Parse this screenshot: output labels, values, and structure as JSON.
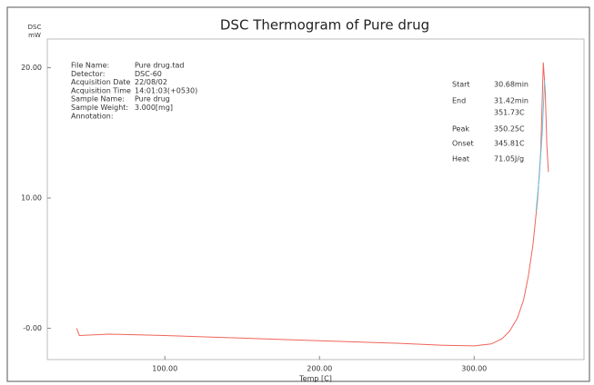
{
  "chart_data": {
    "type": "line",
    "title": "DSC Thermogram of Pure drug",
    "ylabel": "DSC",
    "yunit": "mW",
    "xlabel": "Temp [C]",
    "xlim": [
      24,
      371
    ],
    "ylim": [
      -2.4,
      22.2
    ],
    "xticks": [
      {
        "value": 100,
        "label": "100.00"
      },
      {
        "value": 200,
        "label": "200.00"
      },
      {
        "value": 300,
        "label": "300.00"
      }
    ],
    "yticks": [
      {
        "value": 0,
        "label": "-0.00"
      },
      {
        "value": 10,
        "label": "10.00"
      },
      {
        "value": 20,
        "label": "20.00"
      }
    ],
    "series": [
      {
        "color": "#f0645a",
        "x": [
          43,
          44.7,
          64,
          100,
          150,
          200,
          250,
          280,
          300,
          311,
          318,
          323,
          328,
          332,
          335,
          338,
          341,
          343,
          344.7,
          346,
          347,
          348
        ],
        "values": [
          0,
          -0.55,
          -0.45,
          -0.55,
          -0.75,
          -0.95,
          -1.15,
          -1.3,
          -1.35,
          -1.2,
          -0.8,
          -0.2,
          0.8,
          2.2,
          4,
          6.4,
          9.9,
          13.5,
          20.4,
          18,
          14,
          12
        ]
      },
      {
        "color": "#5cc8e6",
        "x": [
          340,
          342,
          344,
          345.5
        ],
        "values": [
          9,
          11.5,
          15,
          19
        ]
      }
    ],
    "info_left": [
      {
        "label": "File Name:",
        "value": "Pure drug.tad"
      },
      {
        "label": "Detector:",
        "value": "DSC-60"
      },
      {
        "label": "Acquisition Date",
        "value": "22/08/02"
      },
      {
        "label": "Acquisition Time",
        "value": "14:01:03(+0530)"
      },
      {
        "label": "Sample Name:",
        "value": "Pure drug"
      },
      {
        "label": "Sample Weight:",
        "value": "3.000[mg]"
      },
      {
        "label": "Annotation:"
      }
    ],
    "info_right": [
      {
        "label": "Start",
        "value": "30.68min"
      },
      {
        "label": "End",
        "value": "31.42min"
      },
      {
        "value": "351.73C"
      },
      {
        "label": "Peak",
        "value": "350.25C"
      },
      {
        "label": "Onset",
        "value": "345.81C"
      },
      {
        "label": "Heat",
        "value": "71.05J/g"
      }
    ]
  }
}
